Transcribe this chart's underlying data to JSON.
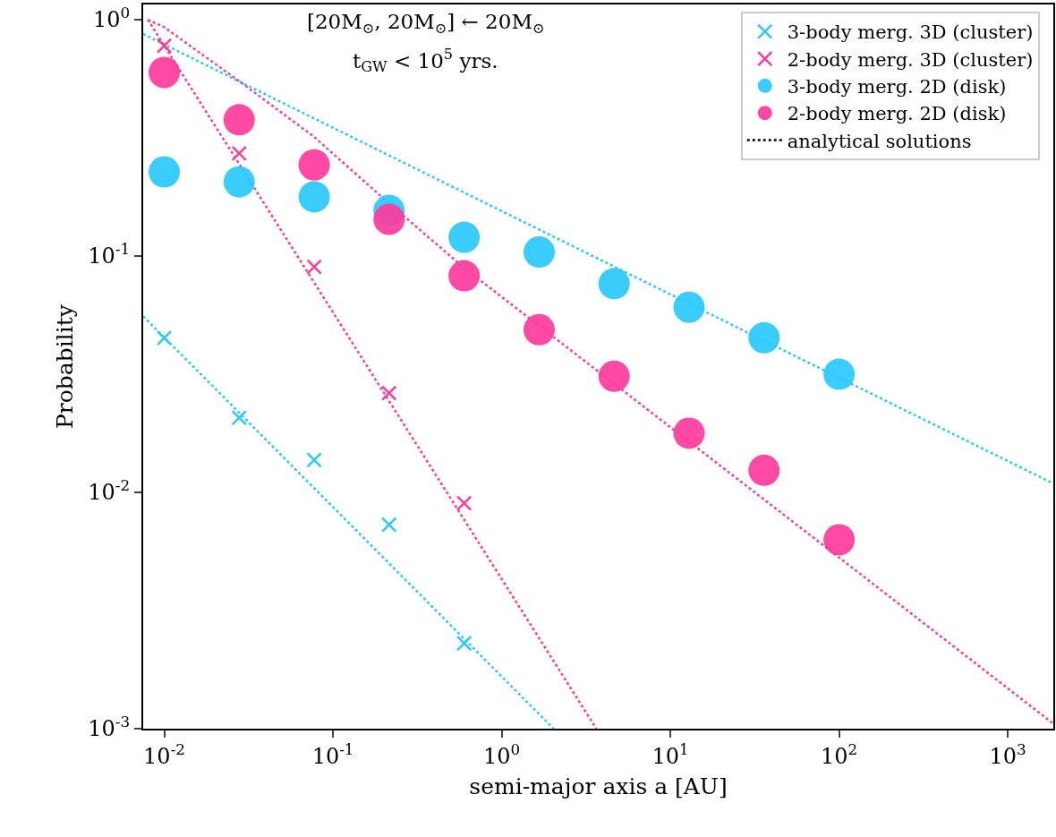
{
  "chart_data": {
    "type": "scatter",
    "xlabel": "semi-major axis a [AU]",
    "ylabel": "Probability",
    "annotations": [
      "[20M$_{⊙}$, 20M$_{⊙}$] ← 20M$_{⊙}$",
      "t$_{GW}$ < 10$^{5}$ yrs."
    ],
    "log": "xy",
    "grid": false,
    "legend": "top right",
    "xlim": [
      0.0075,
      1860
    ],
    "ylim": [
      0.001,
      1.16
    ],
    "xticks": [
      {
        "value": 0.01,
        "label": "10$^{-2}$"
      },
      {
        "value": 0.1,
        "label": "10$^{-1}$"
      },
      {
        "value": 1,
        "label": "10$^{0}$"
      },
      {
        "value": 10,
        "label": "10$^{1}$"
      },
      {
        "value": 100,
        "label": "10$^{2}$"
      },
      {
        "value": 1000,
        "label": "10$^{3}$"
      }
    ],
    "yticks": [
      {
        "value": 0.001,
        "label": "10$^{-3}$"
      },
      {
        "value": 0.01,
        "label": "10$^{-2}$"
      },
      {
        "value": 0.1,
        "label": "10$^{-1}$"
      },
      {
        "value": 1,
        "label": "10$^{0}$"
      }
    ],
    "series": [
      {
        "type": "line",
        "color": "#29c9fb",
        "line_style": "dotted",
        "x": [
          0.0075,
          1860
        ],
        "values": [
          0.87,
          0.0109
        ]
      },
      {
        "type": "line",
        "color": "#fe3a9c",
        "line_style": "dotted",
        "x": [
          0.008,
          0.01,
          0.0278,
          0.0774,
          0.215,
          0.6,
          100,
          1860
        ],
        "values": [
          1.0,
          0.93,
          0.55,
          0.319,
          0.167,
          0.089,
          0.0053,
          0.00105
        ]
      },
      {
        "type": "line",
        "color": "#29c9fb",
        "line_style": "dotted",
        "x": [
          0.0075,
          2.03
        ],
        "values": [
          0.0556,
          0.001
        ]
      },
      {
        "type": "line",
        "color": "#fe3a9c",
        "line_style": "dotted",
        "x": [
          0.008,
          3.64
        ],
        "values": [
          1.0,
          0.001
        ]
      },
      {
        "name": "3-body merg. 3D (cluster)",
        "marker": "cross",
        "color": "#29c9fb",
        "x": [
          0.01,
          0.0278,
          0.0774,
          0.215,
          0.599
        ],
        "values": [
          0.045,
          0.0207,
          0.0137,
          0.0073,
          0.0023
        ]
      },
      {
        "name": "2-body merg. 3D (cluster)",
        "marker": "cross",
        "color": "#fe3a9c",
        "x": [
          0.01,
          0.0278,
          0.0774,
          0.215,
          0.599
        ],
        "values": [
          0.776,
          0.272,
          0.09,
          0.0263,
          0.009
        ]
      },
      {
        "name": "3-body merg. 2D (disk)",
        "marker": "circle",
        "color": "#29c9fb",
        "x": [
          0.01,
          0.0278,
          0.0774,
          0.215,
          0.599,
          1.668,
          4.64,
          12.9,
          35.9,
          100
        ],
        "values": [
          0.227,
          0.206,
          0.178,
          0.156,
          0.12,
          0.104,
          0.0764,
          0.0607,
          0.0451,
          0.0316
        ]
      },
      {
        "name": "2-body merg. 2D (disk)",
        "marker": "circle",
        "color": "#fe3a9c",
        "x": [
          0.01,
          0.0278,
          0.0774,
          0.215,
          0.599,
          1.668,
          4.64,
          12.9,
          35.9,
          100
        ],
        "values": [
          0.598,
          0.377,
          0.243,
          0.143,
          0.0825,
          0.0488,
          0.031,
          0.0178,
          0.0124,
          0.0063
        ]
      },
      {
        "name": "analytical solutions",
        "type": "line",
        "color": "#000000",
        "line_style": "dotted"
      }
    ]
  }
}
